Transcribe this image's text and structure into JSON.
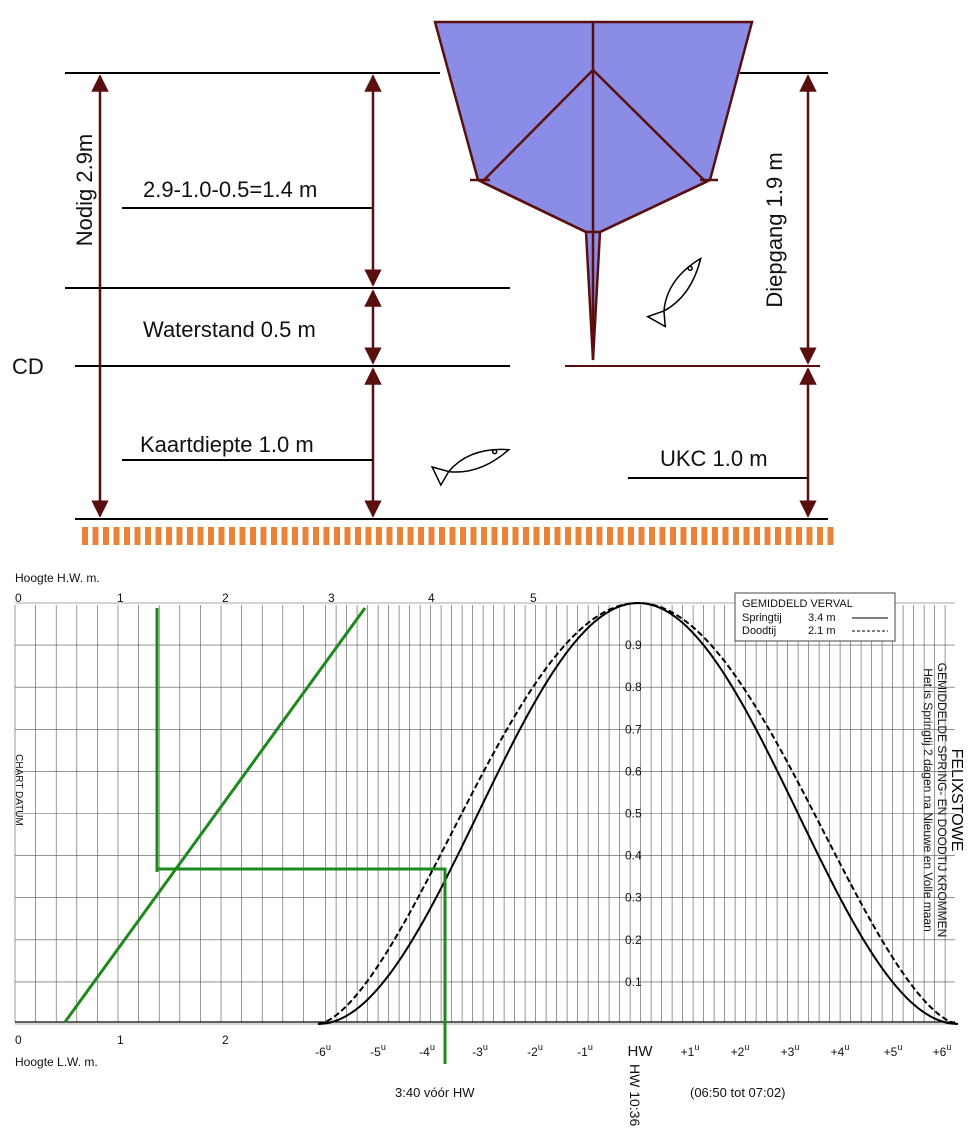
{
  "draught_diagram": {
    "required": "Nodig 2.9m",
    "calculation": "2.9-1.0-0.5=1.4 m",
    "water_level": "Waterstand 0.5 m",
    "datum": "CD",
    "chart_depth": "Kaartdiepte 1.0 m",
    "draught": "Diepgang 1.9 m",
    "ukc": "UKC 1.0 m"
  },
  "tide_chart": {
    "hw_axis_title": "Hoogte H.W. m.",
    "hw_ticks": [
      "0",
      "1",
      "2",
      "3",
      "4",
      "5"
    ],
    "lw_axis_title": "Hoogte L.W. m.",
    "lw_ticks": [
      "0",
      "1",
      "2"
    ],
    "datum_label": "CHART DATUM",
    "factor_ticks": [
      "0.1",
      "0.2",
      "0.3",
      "0.4",
      "0.5",
      "0.6",
      "0.7",
      "0.8",
      "0.9"
    ],
    "hour_ticks": [
      {
        "text": "-6",
        "sup": "u"
      },
      {
        "text": "-5",
        "sup": "u"
      },
      {
        "text": "-4",
        "sup": "u"
      },
      {
        "text": "-3",
        "sup": "u"
      },
      {
        "text": "-2",
        "sup": "u"
      },
      {
        "text": "-1",
        "sup": "u"
      },
      {
        "text": "HW"
      },
      {
        "text": "+1",
        "sup": "u"
      },
      {
        "text": "+2",
        "sup": "u"
      },
      {
        "text": "+3",
        "sup": "u"
      },
      {
        "text": "+4",
        "sup": "u"
      },
      {
        "text": "+5",
        "sup": "u"
      },
      {
        "text": "+6",
        "sup": "u"
      }
    ],
    "legend": {
      "title": "GEMIDDELD VERVAL",
      "rows": [
        [
          "Springtij",
          "3.4 m"
        ],
        [
          "Doodtij",
          "2.1 m"
        ]
      ]
    },
    "port": "FELIXSTOWE",
    "subtitle": "GEMIDDELDE SPRING- EN DOODTIJ KROMMEN",
    "note": "Het is Springtij 2 dagen na Nieuwe en Volle maan",
    "hw_time": "HW 10:36",
    "result": "3:40 vóór HW",
    "range": "(06:50 tot 07:02)"
  }
}
